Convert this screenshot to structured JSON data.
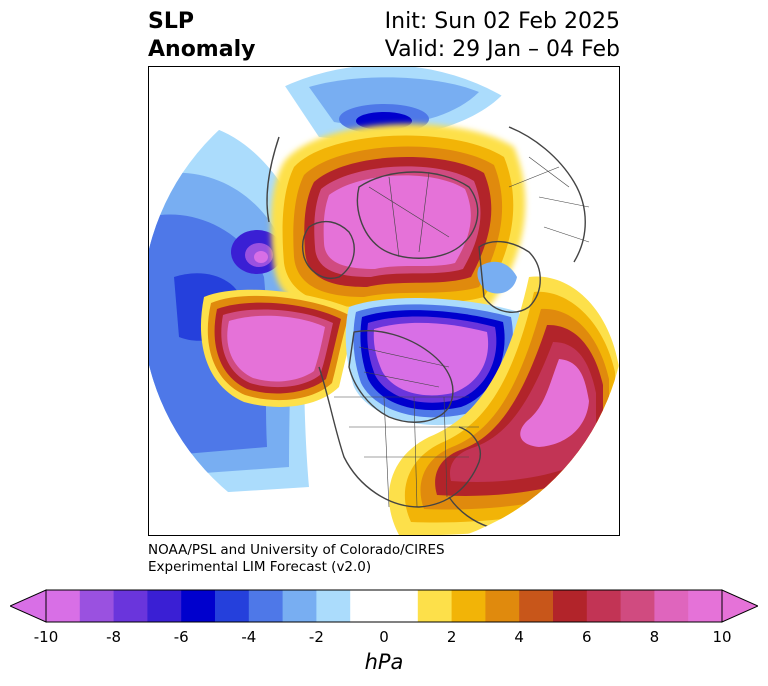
{
  "title": {
    "variable_line1": "SLP",
    "variable_line2": "Anomaly",
    "init_line": "Init: Sun 02 Feb 2025",
    "valid_line": "Valid: 29 Jan – 04 Feb"
  },
  "credit": {
    "line1": "NOAA/PSL and University of Colorado/CIRES",
    "line2": "Experimental LIM Forecast (v2.0)"
  },
  "colorbar": {
    "unit": "hPa",
    "ticks": [
      "-10",
      "-8",
      "-6",
      "-4",
      "-2",
      "0",
      "2",
      "4",
      "6",
      "8",
      "10"
    ],
    "colors": [
      "#d86fe6",
      "#9a51e0",
      "#6a35dc",
      "#3a1fd4",
      "#0000cd",
      "#2540dc",
      "#4e78e8",
      "#78aef2",
      "#abdcfc",
      "#ffffff",
      "#ffffff",
      "#fde04a",
      "#f2b407",
      "#e08a0d",
      "#c8561a",
      "#b2242a",
      "#c23455",
      "#d04b80",
      "#df65bd",
      "#e572d8"
    ],
    "min": -10,
    "max": 10
  },
  "map": {
    "projection": "north-polar-stereographic",
    "features": [
      "coastlines",
      "country-borders",
      "us-state-borders",
      "canada-province-borders"
    ]
  }
}
